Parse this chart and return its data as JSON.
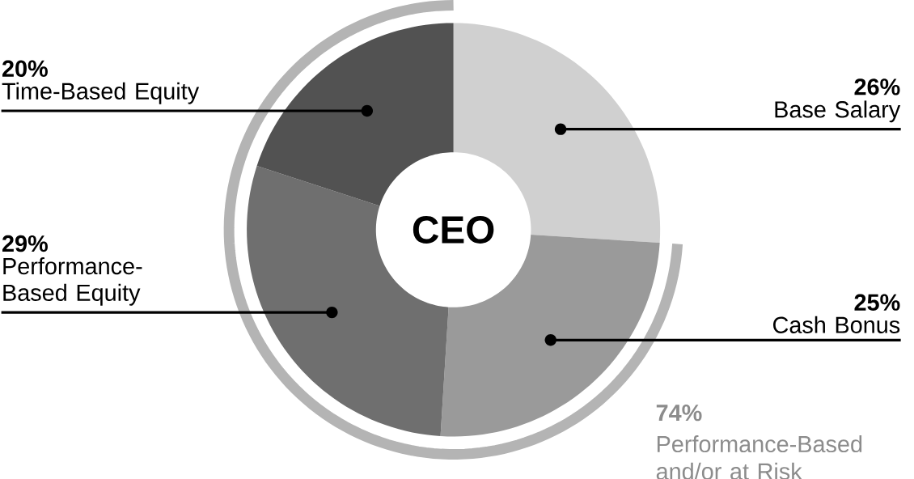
{
  "chart_data": {
    "type": "donut",
    "title": "CEO",
    "categories": [
      "Base Salary",
      "Cash Bonus",
      "Performance-Based Equity",
      "Time-Based Equity"
    ],
    "values": [
      26,
      25,
      29,
      20
    ],
    "value_labels": [
      "26%",
      "25%",
      "29%",
      "20%"
    ],
    "colors": [
      "#d0d0d0",
      "#9a9a9a",
      "#6f6f6f",
      "#525252"
    ],
    "annotations": [
      "74%",
      "Performance-Based and/or at Risk"
    ]
  }
}
